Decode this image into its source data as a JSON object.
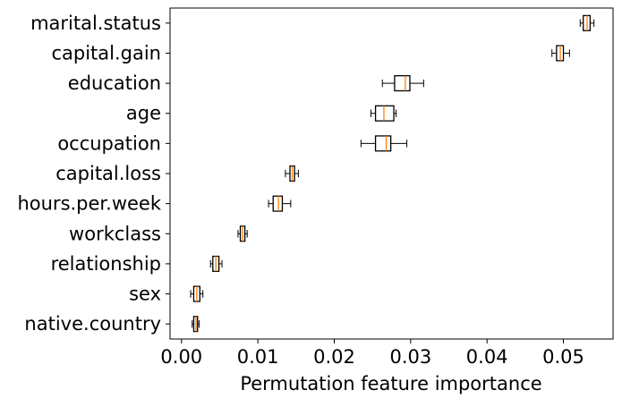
{
  "chart_data": {
    "type": "boxplot",
    "orientation": "horizontal",
    "title": "",
    "xlabel": "Permutation feature importance",
    "ylabel": "",
    "xlim": [
      -0.0015,
      0.0565
    ],
    "xticks": [
      0.0,
      0.01,
      0.02,
      0.03,
      0.04,
      0.05
    ],
    "xtick_labels": [
      "0.00",
      "0.01",
      "0.02",
      "0.03",
      "0.04",
      "0.05"
    ],
    "grid": false,
    "colors": {
      "box": "#000000",
      "median": "#ff7f0e"
    },
    "categories": [
      "marital.status",
      "capital.gain",
      "education",
      "age",
      "occupation",
      "capital.loss",
      "hours.per.week",
      "workclass",
      "relationship",
      "sex",
      "native.country"
    ],
    "boxes": [
      {
        "feature": "marital.status",
        "whislo": 0.0522,
        "q1": 0.0526,
        "med": 0.0531,
        "q3": 0.0535,
        "whishi": 0.054
      },
      {
        "feature": "capital.gain",
        "whislo": 0.0485,
        "q1": 0.0491,
        "med": 0.0496,
        "q3": 0.05,
        "whishi": 0.0508
      },
      {
        "feature": "education",
        "whislo": 0.0263,
        "q1": 0.0279,
        "med": 0.0293,
        "q3": 0.0299,
        "whishi": 0.0317
      },
      {
        "feature": "age",
        "whislo": 0.0248,
        "q1": 0.0254,
        "med": 0.0265,
        "q3": 0.0278,
        "whishi": 0.0281
      },
      {
        "feature": "occupation",
        "whislo": 0.0235,
        "q1": 0.0254,
        "med": 0.0268,
        "q3": 0.0274,
        "whishi": 0.0295
      },
      {
        "feature": "capital.loss",
        "whislo": 0.0136,
        "q1": 0.0142,
        "med": 0.0145,
        "q3": 0.0148,
        "whishi": 0.0153
      },
      {
        "feature": "hours.per.week",
        "whislo": 0.0114,
        "q1": 0.012,
        "med": 0.0127,
        "q3": 0.0132,
        "whishi": 0.0143
      },
      {
        "feature": "workclass",
        "whislo": 0.0074,
        "q1": 0.0077,
        "med": 0.008,
        "q3": 0.0083,
        "whishi": 0.0086
      },
      {
        "feature": "relationship",
        "whislo": 0.0038,
        "q1": 0.0041,
        "med": 0.0045,
        "q3": 0.0049,
        "whishi": 0.0053
      },
      {
        "feature": "sex",
        "whislo": 0.0012,
        "q1": 0.0016,
        "med": 0.002,
        "q3": 0.0024,
        "whishi": 0.0028
      },
      {
        "feature": "native.country",
        "whislo": 0.0014,
        "q1": 0.0016,
        "med": 0.0019,
        "q3": 0.0021,
        "whishi": 0.0023
      }
    ]
  }
}
